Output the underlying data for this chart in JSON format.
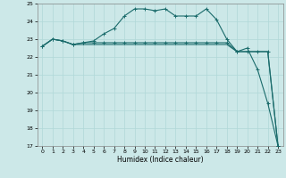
{
  "xlabel": "Humidex (Indice chaleur)",
  "xlim": [
    -0.5,
    23.5
  ],
  "ylim": [
    17,
    25
  ],
  "xticks": [
    0,
    1,
    2,
    3,
    4,
    5,
    6,
    7,
    8,
    9,
    10,
    11,
    12,
    13,
    14,
    15,
    16,
    17,
    18,
    19,
    20,
    21,
    22,
    23
  ],
  "yticks": [
    17,
    18,
    19,
    20,
    21,
    22,
    23,
    24,
    25
  ],
  "bg_color": "#cce8e8",
  "line_color": "#1a6b6b",
  "grid_color": "#b0d8d8",
  "line1_x": [
    0,
    1,
    2,
    3,
    4,
    5,
    6,
    7,
    8,
    9,
    10,
    11,
    12,
    13,
    14,
    15,
    16,
    17,
    18,
    19,
    20,
    21,
    22,
    23
  ],
  "line1_y": [
    22.6,
    23.0,
    22.9,
    22.7,
    22.8,
    22.8,
    22.8,
    22.8,
    22.8,
    22.8,
    22.8,
    22.8,
    22.8,
    22.8,
    22.8,
    22.8,
    22.8,
    22.8,
    22.8,
    22.3,
    22.3,
    22.3,
    22.3,
    17.0
  ],
  "line2_x": [
    0,
    1,
    2,
    3,
    4,
    5,
    6,
    7,
    8,
    9,
    10,
    11,
    12,
    13,
    14,
    15,
    16,
    17,
    18,
    19,
    20,
    21,
    22,
    23
  ],
  "line2_y": [
    22.6,
    23.0,
    22.9,
    22.7,
    22.8,
    22.9,
    23.3,
    23.6,
    24.3,
    24.7,
    24.7,
    24.6,
    24.7,
    24.3,
    24.3,
    24.3,
    24.7,
    24.1,
    23.0,
    22.3,
    22.5,
    21.3,
    19.4,
    17.0
  ],
  "line3_x": [
    0,
    1,
    2,
    3,
    4,
    5,
    6,
    7,
    8,
    9,
    10,
    11,
    12,
    13,
    14,
    15,
    16,
    17,
    18,
    19,
    20,
    21,
    22,
    23
  ],
  "line3_y": [
    22.6,
    23.0,
    22.9,
    22.7,
    22.7,
    22.7,
    22.7,
    22.7,
    22.7,
    22.7,
    22.7,
    22.7,
    22.7,
    22.7,
    22.7,
    22.7,
    22.7,
    22.7,
    22.7,
    22.3,
    22.3,
    22.3,
    22.3,
    17.0
  ]
}
